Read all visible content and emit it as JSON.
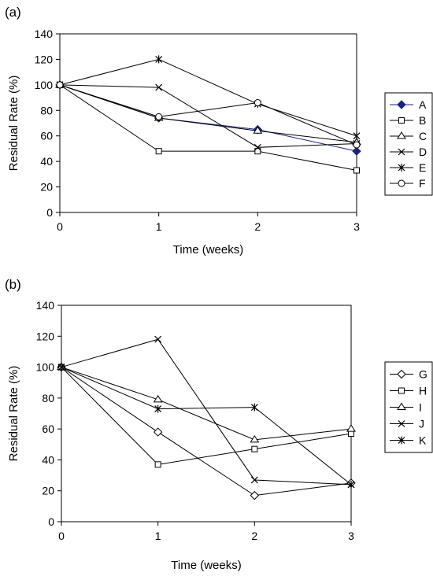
{
  "chart_data": [
    {
      "type": "line",
      "panel_label": "(a)",
      "title": "",
      "xlabel": "Time (weeks)",
      "ylabel": "Residual Rate (%)",
      "x": [
        0,
        1,
        2,
        3
      ],
      "x_ticks": [
        "0",
        "1",
        "2",
        "3"
      ],
      "ylim": [
        0,
        140
      ],
      "y_ticks": [
        "0",
        "20",
        "40",
        "60",
        "80",
        "100",
        "120",
        "140"
      ],
      "grid": false,
      "legend_position": "right",
      "series": [
        {
          "name": "A",
          "marker": "diamond-filled",
          "color": "#1a237e",
          "values": [
            100,
            74,
            65,
            48
          ]
        },
        {
          "name": "B",
          "marker": "square",
          "color": "#000000",
          "values": [
            100,
            48,
            48,
            33
          ]
        },
        {
          "name": "C",
          "marker": "triangle",
          "color": "#000000",
          "values": [
            100,
            74,
            64,
            55
          ]
        },
        {
          "name": "D",
          "marker": "x",
          "color": "#000000",
          "values": [
            100,
            98,
            51,
            54
          ]
        },
        {
          "name": "E",
          "marker": "star",
          "color": "#000000",
          "values": [
            100,
            120,
            85,
            60
          ]
        },
        {
          "name": "F",
          "marker": "circle",
          "color": "#000000",
          "values": [
            100,
            75,
            86,
            53
          ]
        }
      ]
    },
    {
      "type": "line",
      "panel_label": "(b)",
      "title": "",
      "xlabel": "Time (weeks)",
      "ylabel": "Residual Rate (%)",
      "x": [
        0,
        1,
        2,
        3
      ],
      "x_ticks": [
        "0",
        "1",
        "2",
        "3"
      ],
      "ylim": [
        0,
        140
      ],
      "y_ticks": [
        "0",
        "20",
        "40",
        "60",
        "80",
        "100",
        "120",
        "140"
      ],
      "grid": false,
      "legend_position": "right",
      "series": [
        {
          "name": "G",
          "marker": "diamond",
          "color": "#000000",
          "values": [
            100,
            58,
            17,
            25
          ]
        },
        {
          "name": "H",
          "marker": "square",
          "color": "#000000",
          "values": [
            100,
            37,
            47,
            57
          ]
        },
        {
          "name": "I",
          "marker": "triangle",
          "color": "#000000",
          "values": [
            100,
            79,
            53,
            60
          ]
        },
        {
          "name": "J",
          "marker": "x",
          "color": "#000000",
          "values": [
            100,
            118,
            27,
            24
          ]
        },
        {
          "name": "K",
          "marker": "star",
          "color": "#000000",
          "values": [
            100,
            73,
            74,
            24
          ]
        }
      ]
    }
  ]
}
